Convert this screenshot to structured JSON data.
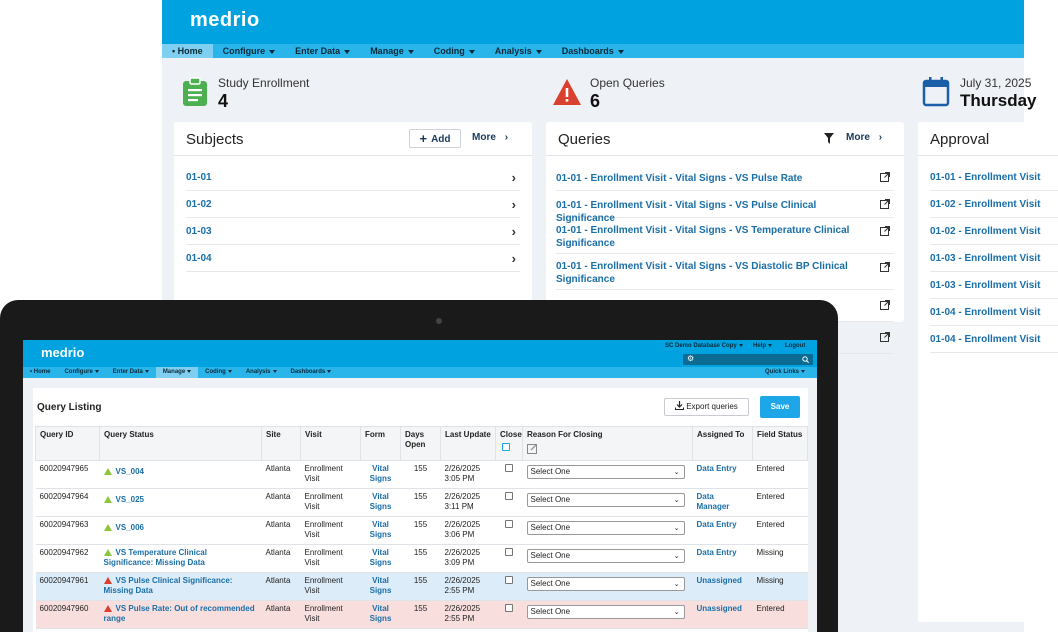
{
  "back": {
    "logo": "medrio",
    "nav": [
      {
        "label": "Home",
        "active": true,
        "caret": false
      },
      {
        "label": "Configure",
        "active": false,
        "caret": true
      },
      {
        "label": "Enter Data",
        "active": false,
        "caret": true
      },
      {
        "label": "Manage",
        "active": false,
        "caret": true
      },
      {
        "label": "Coding",
        "active": false,
        "caret": true
      },
      {
        "label": "Analysis",
        "active": false,
        "caret": true
      },
      {
        "label": "Dashboards",
        "active": false,
        "caret": true
      }
    ],
    "stats": {
      "enrollment": {
        "label": "Study Enrollment",
        "value": "4"
      },
      "queries": {
        "label": "Open Queries",
        "value": "6"
      },
      "date": {
        "label": "July 31, 2025",
        "value": "Thursday"
      }
    },
    "subjects": {
      "title": "Subjects",
      "add_label": "Add",
      "more_label": "More",
      "items": [
        "01-01",
        "01-02",
        "01-03",
        "01-04"
      ]
    },
    "queries": {
      "title": "Queries",
      "more_label": "More",
      "items": [
        "01-01 - Enrollment Visit - Vital Signs - VS Pulse Rate",
        "01-01 - Enrollment Visit - Vital Signs - VS Pulse Clinical Significance",
        "01-01 - Enrollment Visit - Vital Signs - VS Temperature Clinical Significance",
        "01-01 - Enrollment Visit - Vital Signs - VS Diastolic BP Clinical Significance"
      ]
    },
    "approval": {
      "title": "Approval",
      "items": [
        "01-01 - Enrollment Visit",
        "01-02 - Enrollment Visit",
        "01-02 - Enrollment Visit",
        "01-03 - Enrollment Visit",
        "01-03 - Enrollment Visit",
        "01-04 - Enrollment Visit",
        "01-04 - Enrollment Visit"
      ]
    }
  },
  "front": {
    "logo": "medrio",
    "top_right": {
      "database": "SC Demo Database Copy",
      "help": "Help",
      "logout": "Logout"
    },
    "nav": [
      {
        "label": "Home",
        "active": false,
        "caret": false
      },
      {
        "label": "Configure",
        "active": false,
        "caret": true
      },
      {
        "label": "Enter Data",
        "active": false,
        "caret": true
      },
      {
        "label": "Manage",
        "active": true,
        "caret": true
      },
      {
        "label": "Coding",
        "active": false,
        "caret": true
      },
      {
        "label": "Analysis",
        "active": false,
        "caret": true
      },
      {
        "label": "Dashboards",
        "active": false,
        "caret": true
      }
    ],
    "quick_links": "Quick Links",
    "title": "Query Listing",
    "export_label": "Export queries",
    "save_label": "Save",
    "columns": [
      "Query ID",
      "Query Status",
      "Site",
      "Visit",
      "Form",
      "Days Open",
      "Last Update",
      "Close",
      "Reason For Closing",
      "Assigned To",
      "Field Status"
    ],
    "rows": [
      {
        "id": "60020947965",
        "status": "VS_004",
        "flag": "green",
        "site": "Atlanta",
        "visit": "Enrollment Visit",
        "form": "Vital Signs",
        "days": "155",
        "updated": "2/26/2025 3:05 PM",
        "reason": "Select One",
        "assigned": "Data Entry",
        "field": "Entered",
        "tint": ""
      },
      {
        "id": "60020947964",
        "status": "VS_025",
        "flag": "green",
        "site": "Atlanta",
        "visit": "Enrollment Visit",
        "form": "Vital Signs",
        "days": "155",
        "updated": "2/26/2025 3:11 PM",
        "reason": "Select One",
        "assigned": "Data Manager",
        "field": "Entered",
        "tint": ""
      },
      {
        "id": "60020947963",
        "status": "VS_006",
        "flag": "green",
        "site": "Atlanta",
        "visit": "Enrollment Visit",
        "form": "Vital Signs",
        "days": "155",
        "updated": "2/26/2025 3:06 PM",
        "reason": "Select One",
        "assigned": "Data Entry",
        "field": "Entered",
        "tint": ""
      },
      {
        "id": "60020947962",
        "status": "VS Temperature Clinical Significance: Missing Data",
        "flag": "green",
        "site": "Atlanta",
        "visit": "Enrollment Visit",
        "form": "Vital Signs",
        "days": "155",
        "updated": "2/26/2025 3:09 PM",
        "reason": "Select One",
        "assigned": "Data Entry",
        "field": "Missing",
        "tint": ""
      },
      {
        "id": "60020947961",
        "status": "VS Pulse Clinical Significance: Missing Data",
        "flag": "red",
        "site": "Atlanta",
        "visit": "Enrollment Visit",
        "form": "Vital Signs",
        "days": "155",
        "updated": "2/26/2025 2:55 PM",
        "reason": "Select One",
        "assigned": "Unassigned",
        "field": "Missing",
        "tint": "blue"
      },
      {
        "id": "60020947960",
        "status": "VS Pulse Rate: Out of recommended range",
        "flag": "red",
        "site": "Atlanta",
        "visit": "Enrollment Visit",
        "form": "Vital Signs",
        "days": "155",
        "updated": "2/26/2025 2:55 PM",
        "reason": "Select One",
        "assigned": "Unassigned",
        "field": "Entered",
        "tint": "red"
      }
    ]
  }
}
